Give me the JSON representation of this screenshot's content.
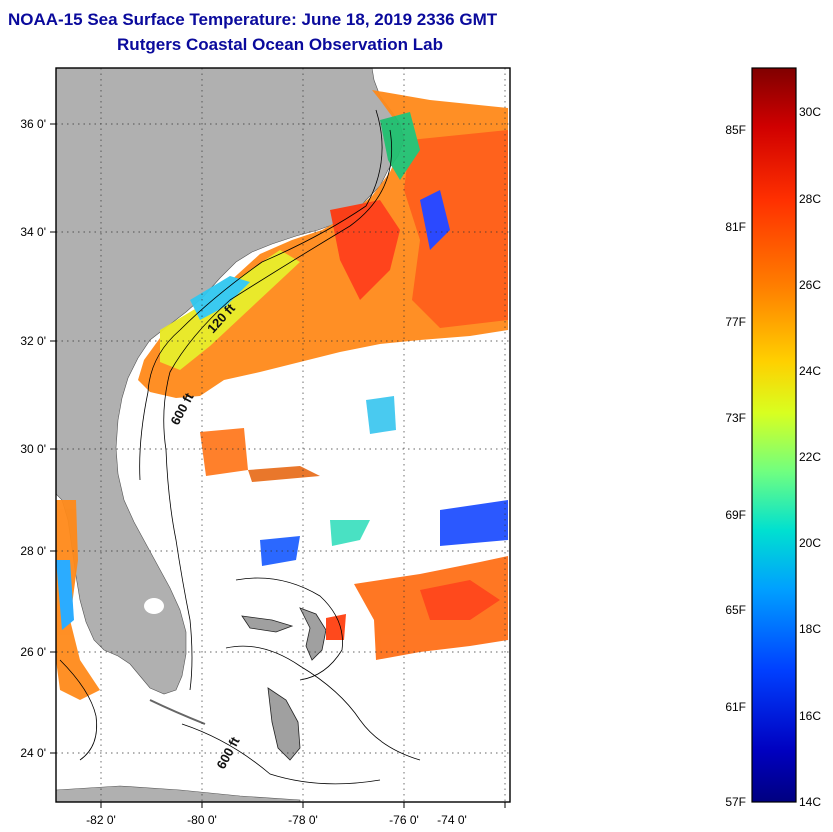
{
  "header": {
    "title": "NOAA-15 Sea Surface Temperature:  June 18, 2019 2336 GMT",
    "subtitle": "Rutgers Coastal Ocean Observation Lab"
  },
  "map": {
    "lat_labels": [
      "36 0'",
      "34 0'",
      "32 0'",
      "30 0'",
      "28 0'",
      "26 0'",
      "24 0'"
    ],
    "lon_labels": [
      "-82 0'",
      "-80 0'",
      "-78 0'",
      "-76 0'",
      "-74 0'"
    ],
    "isobath_labels": [
      "120 ft",
      "600 ft",
      "600 ft"
    ],
    "colors": {
      "land": "#b0b0b0",
      "ocean_nodata": "#ffffff",
      "frame": "#000000"
    }
  },
  "colorbar": {
    "fahrenheit_labels": [
      "85F",
      "81F",
      "77F",
      "73F",
      "69F",
      "65F",
      "61F",
      "57F"
    ],
    "celsius_labels": [
      "30C",
      "28C",
      "26C",
      "24C",
      "22C",
      "20C",
      "18C",
      "16C",
      "14C"
    ],
    "min_c": 14,
    "max_c": 31,
    "gradient": [
      "#800000",
      "#d00000",
      "#ff3000",
      "#ff8000",
      "#ffd000",
      "#d8ff20",
      "#70ff80",
      "#00e0d0",
      "#00a0ff",
      "#0040ff",
      "#0000c0",
      "#000080"
    ]
  }
}
